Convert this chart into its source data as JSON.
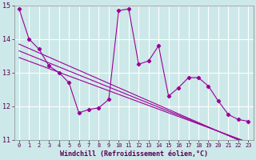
{
  "x": [
    0,
    1,
    2,
    3,
    4,
    5,
    6,
    7,
    8,
    9,
    10,
    11,
    12,
    13,
    14,
    15,
    16,
    17,
    18,
    19,
    20,
    21,
    22,
    23
  ],
  "line_main": [
    14.9,
    14.0,
    13.7,
    13.2,
    13.0,
    12.7,
    11.8,
    11.9,
    11.95,
    12.2,
    14.85,
    14.9,
    13.25,
    13.35,
    13.8,
    12.3,
    12.55,
    12.85,
    12.85,
    12.6,
    12.15,
    11.75,
    11.6,
    11.55
  ],
  "trend1": [
    13.85,
    13.72,
    13.59,
    13.46,
    13.33,
    13.2,
    13.07,
    12.94,
    12.81,
    12.68,
    12.55,
    12.42,
    12.29,
    12.16,
    12.03,
    11.9,
    11.77,
    11.64,
    11.51,
    11.38,
    11.25,
    11.12,
    10.99,
    10.86
  ],
  "trend2": [
    13.65,
    13.53,
    13.41,
    13.29,
    13.17,
    13.05,
    12.93,
    12.81,
    12.69,
    12.57,
    12.45,
    12.33,
    12.21,
    12.09,
    11.97,
    11.85,
    11.73,
    11.61,
    11.49,
    11.37,
    11.25,
    11.13,
    11.01,
    10.89
  ],
  "trend3": [
    13.45,
    13.34,
    13.23,
    13.12,
    13.01,
    12.9,
    12.79,
    12.68,
    12.57,
    12.46,
    12.35,
    12.24,
    12.13,
    12.02,
    11.91,
    11.8,
    11.69,
    11.58,
    11.47,
    11.36,
    11.25,
    11.14,
    11.03,
    10.92
  ],
  "bg_color": "#cde8e8",
  "line_color": "#990099",
  "grid_color": "#b0d8d8",
  "xlabel": "Windchill (Refroidissement éolien,°C)",
  "ylim": [
    11,
    15
  ],
  "xlim": [
    -0.5,
    23.5
  ],
  "yticks": [
    11,
    12,
    13,
    14,
    15
  ],
  "xticks": [
    0,
    1,
    2,
    3,
    4,
    5,
    6,
    7,
    8,
    9,
    10,
    11,
    12,
    13,
    14,
    15,
    16,
    17,
    18,
    19,
    20,
    21,
    22,
    23
  ]
}
